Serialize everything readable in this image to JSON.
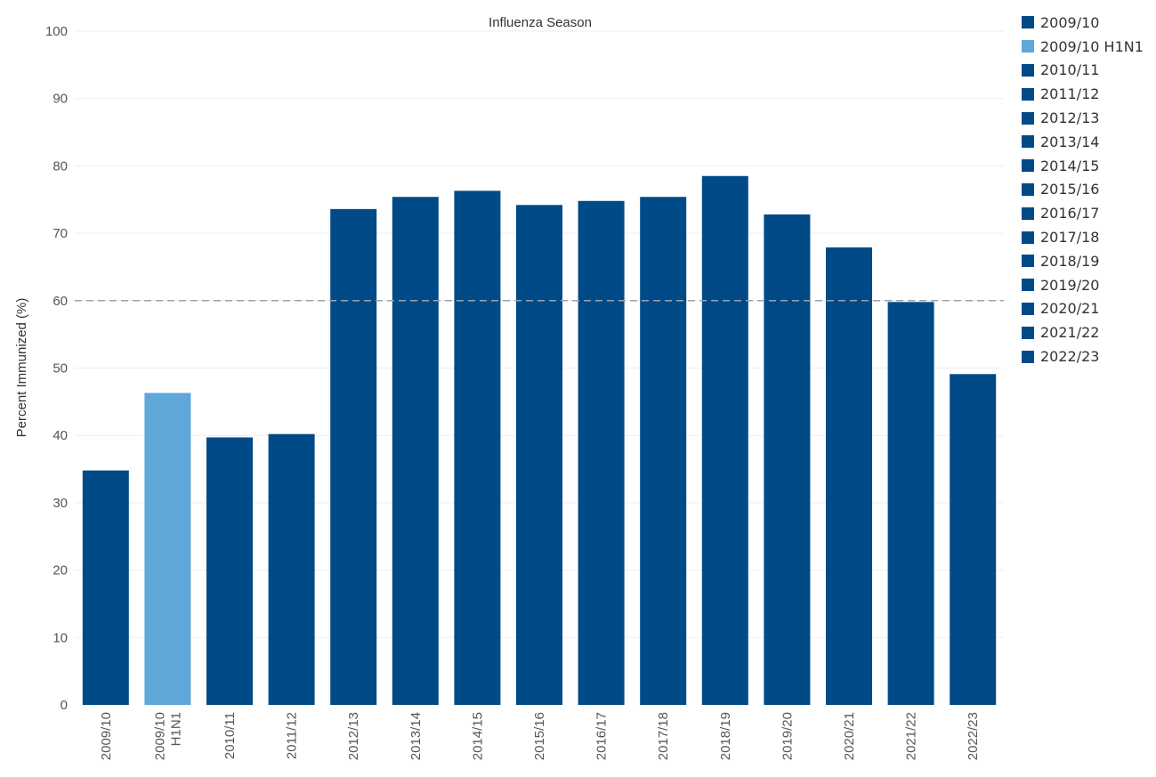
{
  "chart_data": {
    "type": "bar",
    "title": "Influenza Season",
    "xlabel": "",
    "ylabel": "Percent Immunized (%)",
    "ylim": [
      0,
      100
    ],
    "yticks": [
      0,
      10,
      20,
      30,
      40,
      50,
      60,
      70,
      80,
      90,
      100
    ],
    "categories": [
      "2009/10",
      "2009/10 H1N1",
      "2010/11",
      "2011/12",
      "2012/13",
      "2013/14",
      "2014/15",
      "2015/16",
      "2016/17",
      "2017/18",
      "2018/19",
      "2019/20",
      "2020/21",
      "2021/22",
      "2022/23"
    ],
    "values": [
      34.8,
      46.3,
      39.7,
      40.2,
      73.6,
      75.4,
      76.3,
      74.2,
      74.8,
      75.4,
      78.5,
      72.8,
      67.9,
      59.8,
      49.1
    ],
    "colors": [
      "#004b87",
      "#5fa6d9",
      "#004b87",
      "#004b87",
      "#004b87",
      "#004b87",
      "#004b87",
      "#004b87",
      "#004b87",
      "#004b87",
      "#004b87",
      "#004b87",
      "#004b87",
      "#004b87",
      "#004b87"
    ],
    "reference_line": 60,
    "grid": true,
    "legend_position": "right"
  }
}
